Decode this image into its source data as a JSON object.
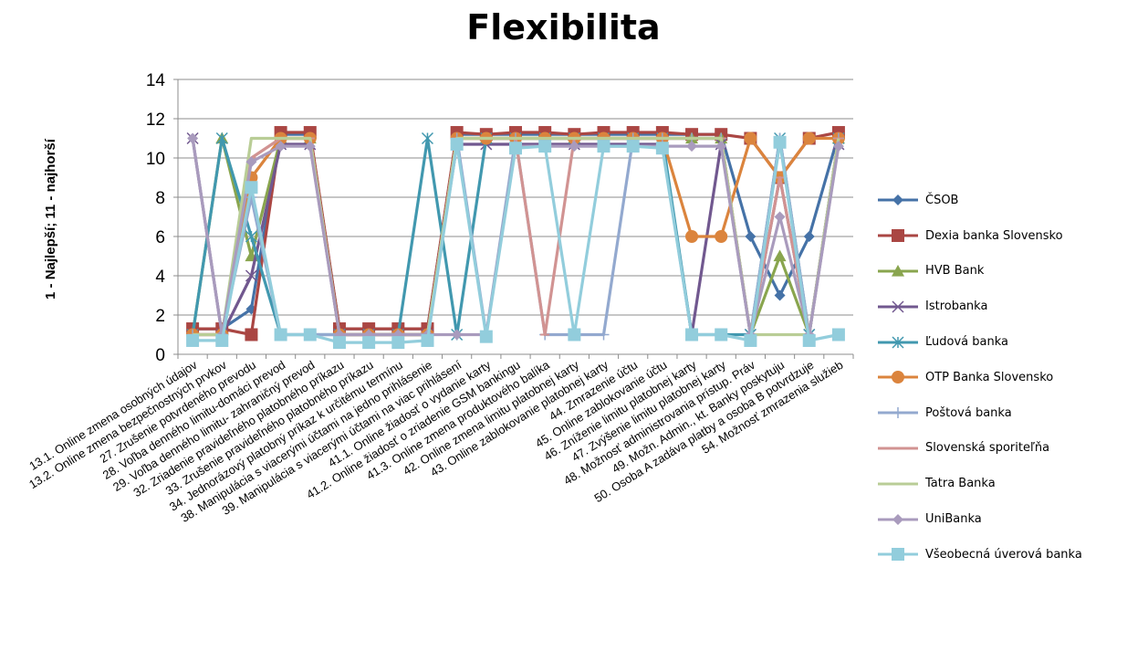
{
  "chart_data": {
    "type": "line",
    "title": "Flexibilita",
    "ylabel": "1 - Najlepší; 11 - najhorší",
    "xlabel": "",
    "ylim": [
      0,
      14
    ],
    "yticks": [
      0,
      2,
      4,
      6,
      8,
      10,
      12,
      14
    ],
    "grid": "horizontal",
    "legend_position": "right",
    "categories": [
      "13.1. Online zmena osobných údajov",
      "13.2. Online zmena bezpečnostných prvkov",
      "27. Zrušenie potvrdeného prevodu",
      "28. Voľba denného limitu-domáci prevod",
      "29. Voľba denného limitu- zahraničný prevod",
      "32. Zriadenie pravideľného platobného príkazu",
      "33. Zrušenie pravideľného platobného príkazu",
      "34. Jednorázový platobný príkaz k určitému termínu",
      "38. Manipulácia s viacerými účtami na jedno prihlásenie",
      "39. Manipulácia s viacerými účtami na viac prihlásení",
      "41.1. Online žiadosť o vydanie karty",
      "41.2. Online žiadosť o zriadenie GSM bankingu",
      "41.3. Online zmena produktového balíka",
      "42. Online zmena limitu platobnej karty",
      "43. Online zablokovanie platobnej karty",
      "44. Zmrazenie účtu",
      "45. Online zablokovanie účtu",
      "46. Zníženie limitu platobnej karty",
      "47. Zvýšenie limitu platobnej karty",
      "48. Možnosť administrovania prístup. Práv",
      "49. Možn. Admin., kt. Banky poskytuju",
      "50. Osoba A zadáva platby a osoba B potvrdzuje",
      "54. Možnosť zmrazenia služieb"
    ],
    "series": [
      {
        "name": "ČSOB",
        "color": "#4572A7",
        "marker": "diamond",
        "values": [
          1.3,
          1.3,
          2.3,
          11.2,
          11.2,
          1.3,
          1.3,
          1.3,
          1.3,
          11.2,
          11.2,
          11.2,
          11.2,
          11.2,
          11.2,
          11.2,
          11.2,
          11.2,
          11.2,
          6,
          3,
          6,
          11.2
        ]
      },
      {
        "name": "Dexia banka Slovensko",
        "color": "#AA4643",
        "marker": "square",
        "values": [
          1.3,
          1.3,
          1,
          11.3,
          11.3,
          1.3,
          1.3,
          1.3,
          1.3,
          11.3,
          11.2,
          11.3,
          11.3,
          11.2,
          11.3,
          11.3,
          11.3,
          11.2,
          11.2,
          11,
          9,
          11,
          11.3
        ]
      },
      {
        "name": "HVB Bank",
        "color": "#89A54E",
        "marker": "triangle",
        "values": [
          1,
          11,
          5,
          11,
          11,
          1,
          1,
          1,
          1,
          11,
          11,
          11,
          11,
          11,
          11,
          11,
          11,
          11,
          11,
          1,
          5,
          1,
          11
        ]
      },
      {
        "name": "Istrobanka",
        "color": "#71588F",
        "marker": "x",
        "values": [
          11,
          1,
          4,
          10.7,
          10.7,
          1,
          1,
          1,
          1,
          10.7,
          10.7,
          10.7,
          10.7,
          10.7,
          10.7,
          10.7,
          10.7,
          1,
          10.7,
          1,
          9,
          1,
          10.7
        ]
      },
      {
        "name": "Ľudová banka",
        "color": "#4198AF",
        "marker": "star",
        "values": [
          1,
          11,
          6,
          1,
          1,
          1,
          1,
          1,
          11,
          1,
          11,
          11,
          11,
          11,
          11,
          11,
          11,
          1,
          1,
          1,
          11,
          1,
          11
        ]
      },
      {
        "name": "OTP Banka Slovensko",
        "color": "#DB843D",
        "marker": "circle",
        "values": [
          1,
          1,
          9,
          11,
          11,
          1,
          1,
          1,
          1,
          11,
          11,
          11,
          11,
          11,
          11,
          11,
          11,
          6,
          6,
          11,
          9,
          11,
          11
        ]
      },
      {
        "name": "Poštová banka",
        "color": "#93A9CF",
        "marker": "plus",
        "values": [
          1,
          1,
          8,
          1,
          1,
          1,
          1,
          1,
          1,
          11,
          1,
          11,
          1,
          1,
          1,
          11,
          11,
          11,
          11,
          1,
          11,
          1,
          11
        ]
      },
      {
        "name": "Slovenská sporiteľňa",
        "color": "#D19392",
        "marker": "dash",
        "values": [
          1,
          1,
          10,
          11,
          11,
          1,
          1,
          1,
          1,
          11,
          11,
          11,
          1,
          11,
          11,
          11,
          11,
          11,
          11,
          1,
          9,
          1,
          11
        ]
      },
      {
        "name": "Tatra Banka",
        "color": "#B9CD96",
        "marker": "none",
        "values": [
          1,
          1,
          11,
          11,
          11,
          1,
          1,
          1,
          1,
          11,
          11,
          11,
          11,
          11,
          11,
          11,
          11,
          11,
          11,
          1,
          1,
          1,
          11
        ]
      },
      {
        "name": "UniBanka",
        "color": "#A99BBD",
        "marker": "diamond",
        "values": [
          11,
          1,
          9.8,
          10.6,
          10.6,
          1,
          1,
          1,
          1,
          1,
          1,
          10.6,
          10.6,
          10.6,
          10.6,
          10.6,
          10.6,
          10.6,
          10.6,
          1,
          7,
          1,
          10.6
        ]
      },
      {
        "name": "Všeobecná úverová banka",
        "color": "#92CDDC",
        "marker": "square",
        "values": [
          0.7,
          0.7,
          8.5,
          1,
          1,
          0.6,
          0.6,
          0.6,
          0.7,
          10.7,
          0.9,
          10.5,
          10.6,
          1,
          10.6,
          10.6,
          10.5,
          1,
          1,
          0.7,
          10.8,
          0.7,
          1
        ]
      }
    ]
  }
}
